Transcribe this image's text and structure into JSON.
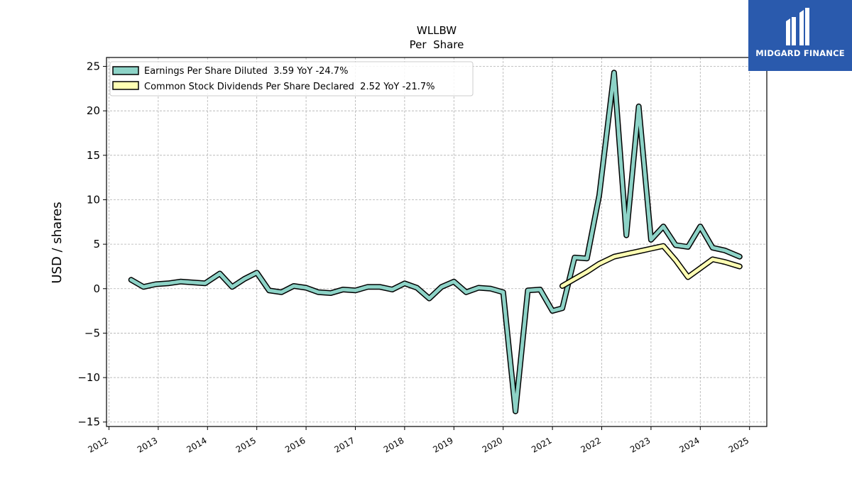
{
  "brand": {
    "name": "MIDGARD FINANCE",
    "color": "#2a5aad",
    "logo_icon": "midgard-logo-icon"
  },
  "chart_data": {
    "type": "line",
    "title": "WLLBW",
    "subtitle": "Per  Share",
    "xlabel": "",
    "ylabel": "USD / shares",
    "xlim": [
      2011.95,
      2025.35
    ],
    "ylim": [
      -15.5,
      26.0
    ],
    "x_ticks": [
      2012,
      2013,
      2014,
      2015,
      2016,
      2017,
      2018,
      2019,
      2020,
      2021,
      2022,
      2023,
      2024,
      2025
    ],
    "y_ticks": [
      -15,
      -10,
      -5,
      0,
      5,
      10,
      15,
      20,
      25
    ],
    "grid": true,
    "legend_position": "top-left",
    "series": [
      {
        "name": "Earnings Per Share Diluted  3.59 YoY -24.7%",
        "color": "#8dd3c7",
        "x": [
          2012.45,
          2012.7,
          2012.95,
          2013.2,
          2013.45,
          2013.7,
          2013.95,
          2014.25,
          2014.5,
          2014.75,
          2015.0,
          2015.25,
          2015.5,
          2015.75,
          2016.0,
          2016.25,
          2016.5,
          2016.75,
          2017.0,
          2017.25,
          2017.5,
          2017.75,
          2018.0,
          2018.25,
          2018.5,
          2018.75,
          2019.0,
          2019.25,
          2019.5,
          2019.75,
          2020.0,
          2020.25,
          2020.5,
          2020.75,
          2021.0,
          2021.2,
          2021.45,
          2021.7,
          2021.95,
          2022.25,
          2022.5,
          2022.75,
          2023.0,
          2023.25,
          2023.5,
          2023.75,
          2024.0,
          2024.25,
          2024.5,
          2024.8
        ],
        "values": [
          1.0,
          0.2,
          0.5,
          0.6,
          0.8,
          0.7,
          0.6,
          1.7,
          0.2,
          1.1,
          1.8,
          -0.2,
          -0.4,
          0.3,
          0.1,
          -0.4,
          -0.5,
          -0.1,
          -0.2,
          0.2,
          0.2,
          -0.1,
          0.6,
          0.1,
          -1.1,
          0.2,
          0.8,
          -0.4,
          0.1,
          0.0,
          -0.4,
          -13.8,
          -0.2,
          -0.1,
          -2.5,
          -2.2,
          3.5,
          3.4,
          10.5,
          24.3,
          6.0,
          20.5,
          5.5,
          7.0,
          4.9,
          4.7,
          7.0,
          4.6,
          4.3,
          3.6
        ]
      },
      {
        "name": "Common Stock Dividends Per Share Declared  2.52 YoY -21.7%",
        "color": "#ffffb3",
        "x": [
          2021.2,
          2021.45,
          2021.7,
          2021.95,
          2022.25,
          2022.5,
          2022.75,
          2023.0,
          2023.25,
          2023.5,
          2023.75,
          2024.0,
          2024.25,
          2024.5,
          2024.8
        ],
        "values": [
          0.3,
          1.1,
          1.9,
          2.8,
          3.6,
          3.9,
          4.2,
          4.5,
          4.8,
          3.2,
          1.3,
          2.3,
          3.3,
          3.0,
          2.5
        ]
      }
    ]
  }
}
